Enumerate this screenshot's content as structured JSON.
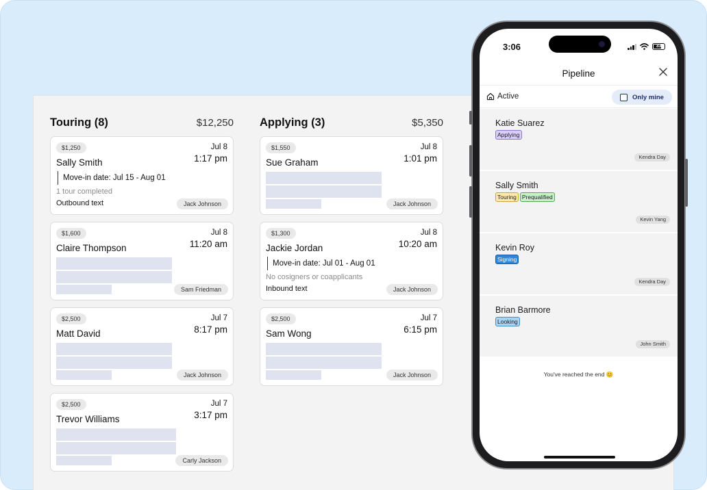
{
  "board": {
    "columns": [
      {
        "title": "Touring (8)",
        "total": "$12,250",
        "cards": [
          {
            "price": "$1,250",
            "date": "Jul 8",
            "name": "Sally Smith",
            "time": "1:17 pm",
            "move_in": "Move-in date: Jul 15 - Aug 01",
            "note": "1 tour completed",
            "message_type": "Outbound text",
            "agent": "Jack Johnson"
          },
          {
            "price": "$1,600",
            "date": "Jul 8",
            "name": "Claire Thompson",
            "time": "11:20 am",
            "agent": "Sam Friedman"
          },
          {
            "price": "$2,500",
            "date": "Jul 7",
            "name": "Matt David",
            "time": "8:17 pm",
            "agent": "Jack Johnson"
          },
          {
            "price": "$2,500",
            "date": "Jul 7",
            "name": "Trevor Williams",
            "time": "3:17 pm",
            "agent": "Carly Jackson"
          }
        ]
      },
      {
        "title": "Applying (3)",
        "total": "$5,350",
        "cards": [
          {
            "price": "$1,550",
            "date": "Jul 8",
            "name": "Sue Graham",
            "time": "1:01 pm",
            "agent": "Jack Johnson"
          },
          {
            "price": "$1,300",
            "date": "Jul 8",
            "name": "Jackie Jordan",
            "time": "10:20 am",
            "move_in": "Move-in date: Jul 01 - Aug 01",
            "note": "No cosigners or coapplicants",
            "message_type": "Inbound text",
            "agent": "Jack Johnson"
          },
          {
            "price": "$2,500",
            "date": "Jul 7",
            "name": "Sam Wong",
            "time": "6:15 pm",
            "agent": "Jack Johnson"
          }
        ]
      }
    ]
  },
  "phone": {
    "status_time": "3:06",
    "battery": "33",
    "nav_title": "Pipeline",
    "filter_active": "Active",
    "filter_only_mine": "Only mine",
    "items": [
      {
        "name": "Katie Suarez",
        "tags": [
          "Applying"
        ],
        "agent": "Kendra Day"
      },
      {
        "name": "Sally Smith",
        "tags": [
          "Touring",
          "Prequalified"
        ],
        "agent": "Kevin Yang"
      },
      {
        "name": "Kevin Roy",
        "tags": [
          "Signing"
        ],
        "agent": "Kendra Day"
      },
      {
        "name": "Brian Barmore",
        "tags": [
          "Looking"
        ],
        "agent": "John Smith"
      }
    ],
    "end_note": "You've reached the end 😊",
    "icons": [
      "home-icon",
      "checkbox-icon",
      "close-icon",
      "signal-icon",
      "wifi-icon",
      "battery-icon"
    ]
  },
  "colors": {
    "background": "#d9ecfb",
    "placeholder": "#dfe3ef",
    "tag_applying": "#d9cdfb",
    "tag_touring": "#fde9a8",
    "tag_prequalified": "#c9efc9",
    "tag_signing": "#2f86d6",
    "tag_looking": "#a7d3f5"
  }
}
